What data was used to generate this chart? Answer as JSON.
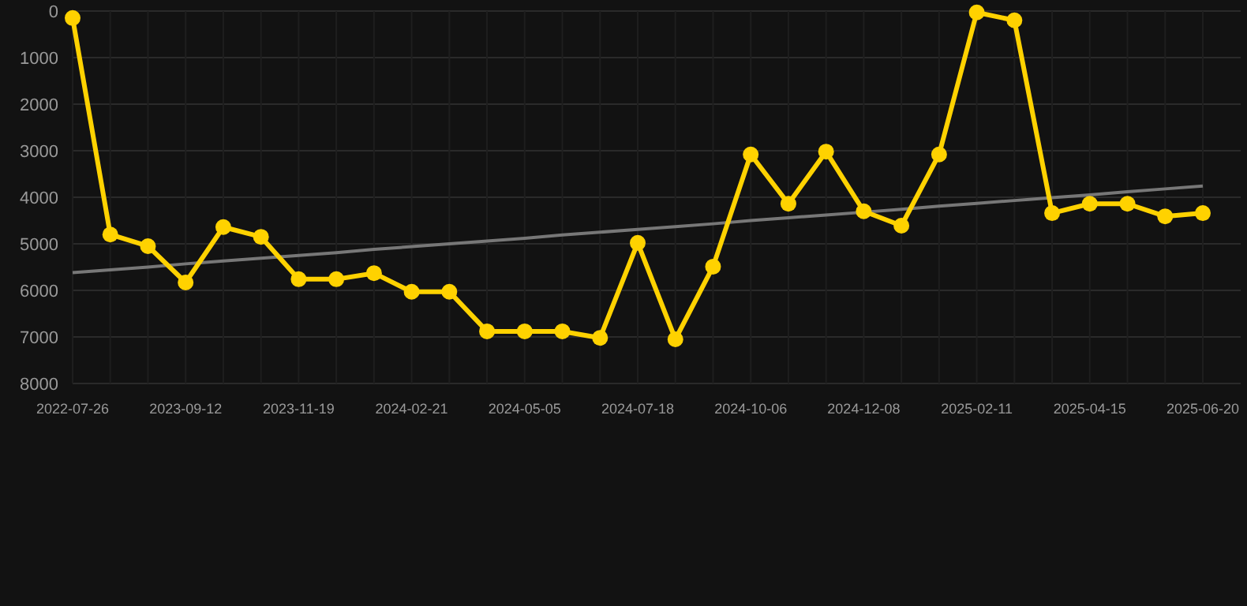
{
  "chart_data": {
    "type": "line",
    "categories": [
      "2022-07-26",
      null,
      null,
      "2023-09-12",
      null,
      null,
      "2023-11-19",
      null,
      null,
      "2024-02-21",
      null,
      null,
      "2024-05-05",
      null,
      null,
      "2024-07-18",
      null,
      null,
      "2024-10-06",
      null,
      null,
      "2024-12-08",
      null,
      null,
      "2025-02-11",
      null,
      null,
      "2025-04-15",
      null,
      null,
      "2025-06-20"
    ],
    "series": [
      {
        "color": "#ffd200",
        "marker": "circle",
        "values": [
          150,
          4800,
          5050,
          5830,
          4640,
          4850,
          5760,
          5760,
          5630,
          6030,
          6030,
          6880,
          6880,
          6880,
          7020,
          4980,
          7050,
          5490,
          3080,
          4140,
          3020,
          4300,
          4610,
          3080,
          30,
          200,
          4340,
          4140,
          4140,
          4410,
          4340
        ]
      },
      {
        "color": "#777777",
        "marker": "none",
        "values": [
          5620,
          5560,
          5500,
          5430,
          5370,
          5310,
          5250,
          5190,
          5120,
          5060,
          5000,
          4940,
          4880,
          4810,
          4750,
          4690,
          4630,
          4570,
          4500,
          4440,
          4380,
          4320,
          4260,
          4190,
          4130,
          4070,
          4010,
          3950,
          3880,
          3820,
          3760
        ]
      }
    ],
    "ylim": [
      8000,
      0
    ],
    "yticks": [
      0,
      1000,
      2000,
      3000,
      4000,
      5000,
      6000,
      7000,
      8000
    ],
    "grid": true
  }
}
